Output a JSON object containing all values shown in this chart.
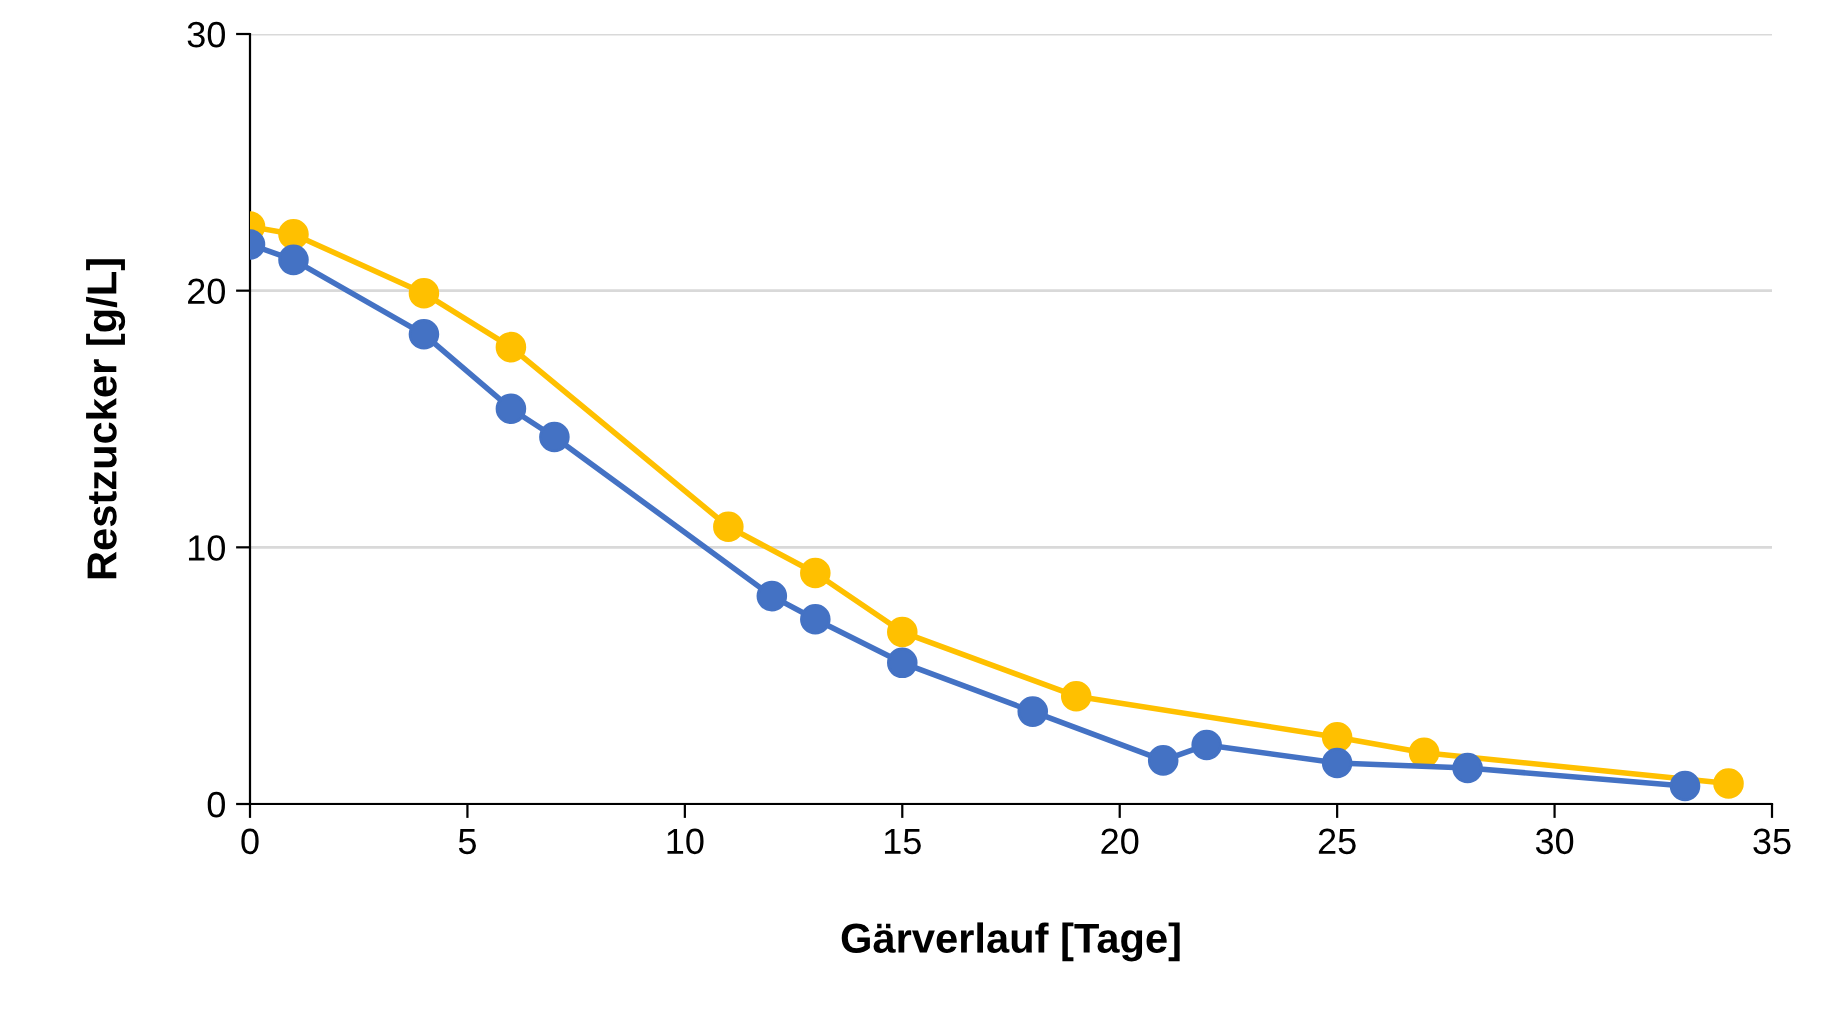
{
  "chart_data": {
    "type": "line",
    "xlabel": "Gärverlauf [Tage]",
    "ylabel": "Restzucker [g/L]",
    "xlim": [
      0,
      35
    ],
    "xticks": [
      0,
      5,
      10,
      15,
      20,
      25,
      30,
      35
    ],
    "ylim": [
      0,
      30
    ],
    "yticks": [
      0,
      10,
      20,
      30
    ],
    "grid": "y",
    "marker": "circle",
    "line_style": "solid",
    "legend": false,
    "series": [
      {
        "color": "#ffc000",
        "x": [
          0,
          1,
          4,
          6,
          11,
          13,
          15,
          19,
          25,
          27,
          34
        ],
        "values": [
          22.5,
          22.2,
          19.9,
          17.8,
          10.8,
          9.0,
          6.7,
          4.2,
          2.6,
          2.0,
          0.8
        ]
      },
      {
        "color": "#4472c4",
        "x": [
          0,
          1,
          4,
          6,
          7,
          12,
          13,
          15,
          18,
          21,
          22,
          25,
          28,
          33
        ],
        "values": [
          21.8,
          21.2,
          18.3,
          15.4,
          14.3,
          8.1,
          7.2,
          5.5,
          3.6,
          1.7,
          2.3,
          1.6,
          1.4,
          0.7
        ]
      }
    ]
  }
}
